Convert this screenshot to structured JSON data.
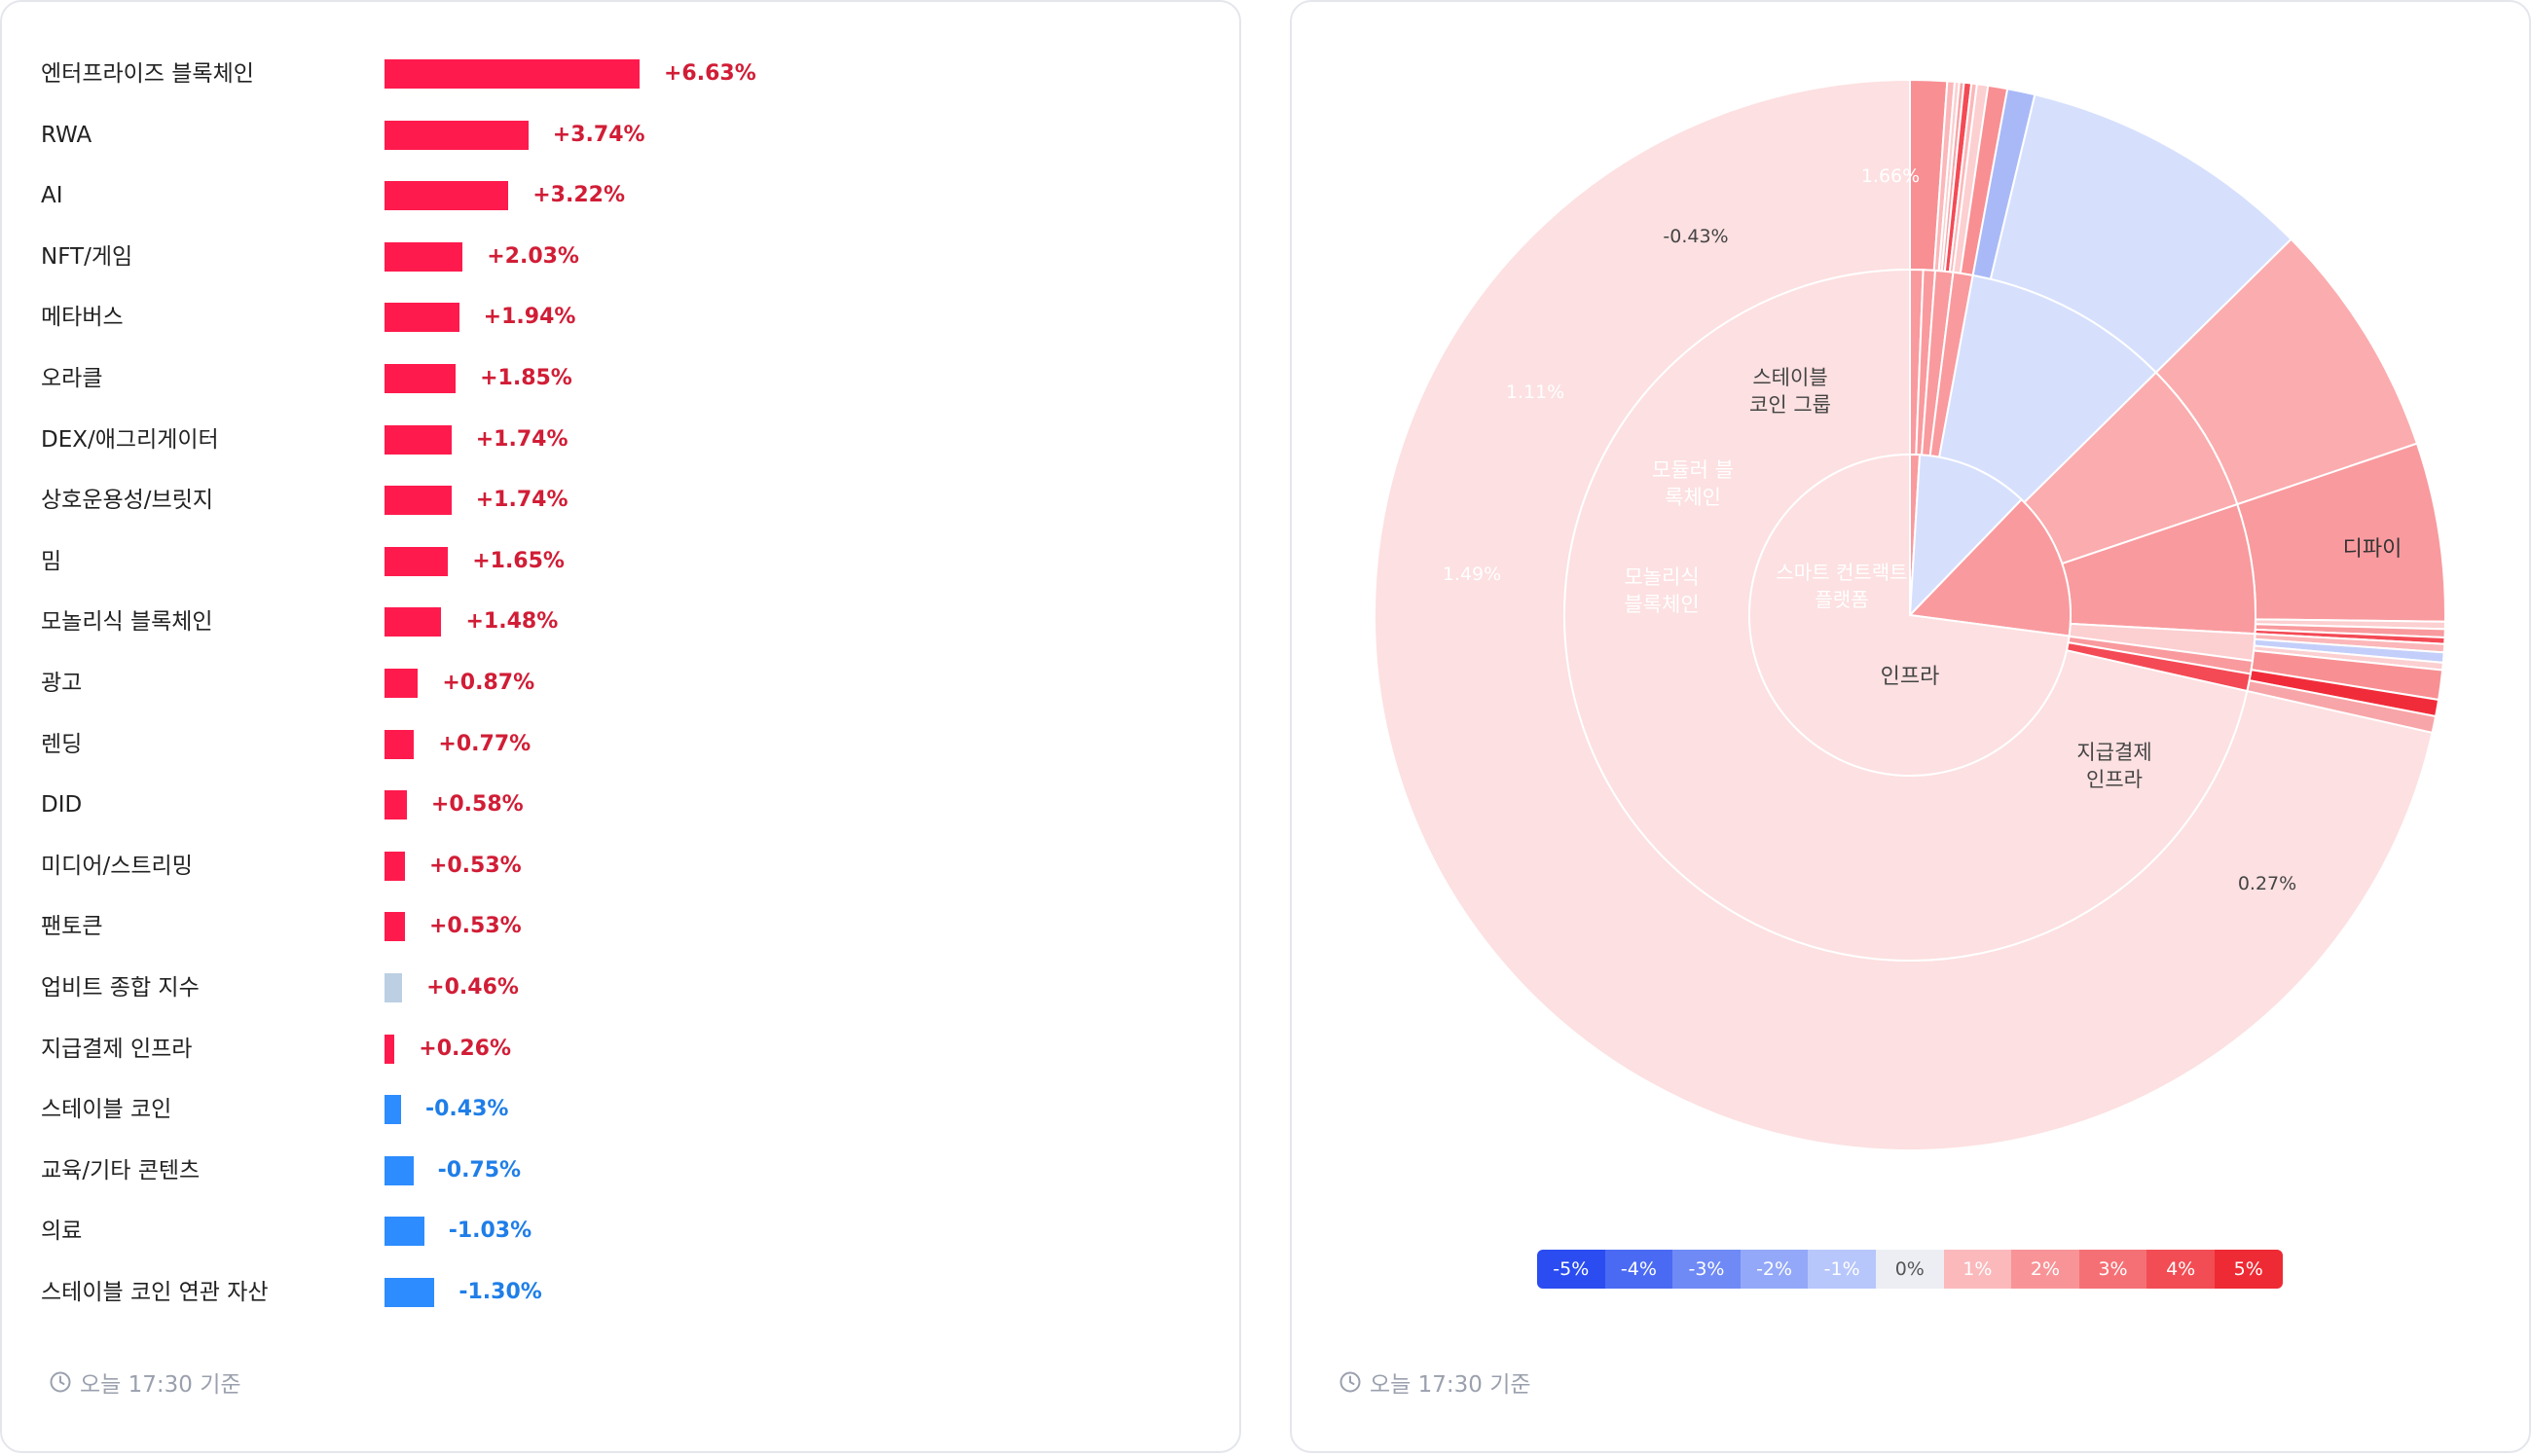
{
  "bar_chart": {
    "chart_data": {
      "type": "bar",
      "orientation": "horizontal",
      "categories": [
        "엔터프라이즈 블록체인",
        "RWA",
        "AI",
        "NFT/게임",
        "메타버스",
        "오라클",
        "DEX/애그리게이터",
        "상호운용성/브릿지",
        "밈",
        "모놀리식 블록체인",
        "광고",
        "렌딩",
        "DID",
        "미디어/스트리밍",
        "팬토큰",
        "업비트 종합 지수",
        "지급결제 인프라",
        "스테이블 코인",
        "교육/기타 콘텐츠",
        "의료",
        "스테이블 코인 연관 자산"
      ],
      "values": [
        6.63,
        3.74,
        3.22,
        2.03,
        1.94,
        1.85,
        1.74,
        1.74,
        1.65,
        1.48,
        0.87,
        0.77,
        0.58,
        0.53,
        0.53,
        0.46,
        0.26,
        -0.43,
        -0.75,
        -1.03,
        -1.3
      ],
      "value_labels": [
        "+6.63%",
        "+3.74%",
        "+3.22%",
        "+2.03%",
        "+1.94%",
        "+1.85%",
        "+1.74%",
        "+1.74%",
        "+1.65%",
        "+1.48%",
        "+0.87%",
        "+0.77%",
        "+0.58%",
        "+0.53%",
        "+0.53%",
        "+0.46%",
        "+0.26%",
        "-0.43%",
        "-0.75%",
        "-1.03%",
        "-1.30%"
      ],
      "highlight_category": "업비트 종합 지수"
    },
    "colors": {
      "positive_bar": "#ff1a4d",
      "positive_text": "#d11d36",
      "negative_bar": "#2d8cff",
      "negative_text": "#1f7ee8",
      "index_bar": "#bccfe3"
    },
    "footer": "오늘 17:30 기준"
  },
  "sunburst_chart": {
    "chart_data": {
      "type": "sunburst",
      "root_label": "인프라",
      "inner_ring": [
        {
          "label": "디파이",
          "color": "#d6e0fd"
        },
        {
          "label": "스마트 컨트랙트\n플랫폼",
          "color": "#f99a9e"
        },
        {
          "label": "인프라",
          "color": "#fde0e1"
        }
      ],
      "middle_ring": [
        {
          "label": "",
          "color": "#f99a9e"
        },
        {
          "label": "스테이블\n코인 그룹",
          "color": "#d6e0fd"
        },
        {
          "label": "모듈러 블\n록체인",
          "color": "#fbacae"
        },
        {
          "label": "모놀리식\n블록체인",
          "color": "#f99a9e"
        },
        {
          "label": "",
          "color": "#fccfd1"
        },
        {
          "label": "",
          "color": "#f99a9e"
        },
        {
          "label": "",
          "color": "#f44a55"
        },
        {
          "label": "지급결제\n인프라",
          "color": "#fde0e1"
        }
      ],
      "outer_labels": [
        "1.66%",
        "-0.43%",
        "1.11%",
        "1.49%",
        "0.27%"
      ],
      "legend": [
        "-5%",
        "-4%",
        "-3%",
        "-2%",
        "-1%",
        "0%",
        "1%",
        "2%",
        "3%",
        "4%",
        "5%"
      ],
      "legend_colors": [
        "#2a4cf0",
        "#4b6af3",
        "#6f8af5",
        "#93a8f8",
        "#b7c6fb",
        "#eceef3",
        "#fbb9bc",
        "#f89497",
        "#f57075",
        "#f24d54",
        "#ee2a34"
      ]
    },
    "footer": "오늘 17:30 기준"
  }
}
